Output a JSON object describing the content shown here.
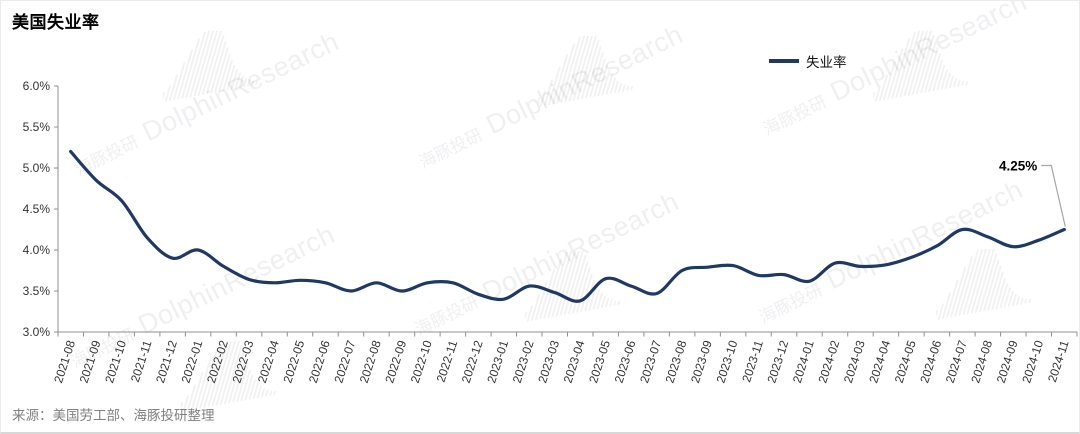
{
  "header": {
    "title": "美国失业率"
  },
  "legend": {
    "label": "失业率"
  },
  "source": {
    "text": "来源：美国劳工部、海豚投研整理"
  },
  "watermark": {
    "cn": "海豚投研",
    "en": "DolphinResearch"
  },
  "annotation": {
    "last_value": "4.25%"
  },
  "chart_data": {
    "type": "line",
    "title": "美国失业率",
    "categories": [
      "2021-08",
      "2021-09",
      "2021-10",
      "2021-11",
      "2021-12",
      "2022-01",
      "2022-02",
      "2022-03",
      "2022-04",
      "2022-05",
      "2022-06",
      "2022-07",
      "2022-08",
      "2022-09",
      "2022-10",
      "2022-11",
      "2022-12",
      "2023-01",
      "2023-02",
      "2023-03",
      "2023-04",
      "2023-05",
      "2023-06",
      "2023-07",
      "2023-08",
      "2023-09",
      "2023-10",
      "2023-11",
      "2023-12",
      "2024-01",
      "2024-02",
      "2024-03",
      "2024-04",
      "2024-05",
      "2024-06",
      "2024-07",
      "2024-08",
      "2024-09",
      "2024-10",
      "2024-11"
    ],
    "series": [
      {
        "name": "失业率",
        "values": [
          5.2,
          4.85,
          4.6,
          4.15,
          3.9,
          4.0,
          3.8,
          3.64,
          3.6,
          3.63,
          3.6,
          3.5,
          3.6,
          3.5,
          3.6,
          3.6,
          3.46,
          3.4,
          3.56,
          3.48,
          3.38,
          3.65,
          3.56,
          3.47,
          3.75,
          3.79,
          3.81,
          3.69,
          3.7,
          3.62,
          3.84,
          3.8,
          3.82,
          3.91,
          4.05,
          4.25,
          4.16,
          4.04,
          4.12,
          4.25
        ]
      }
    ],
    "xlabel": "",
    "ylabel": "",
    "ylim": [
      3.0,
      6.0
    ],
    "ytick_step": 0.5,
    "ytick_labels": [
      "3.0%",
      "3.5%",
      "4.0%",
      "4.5%",
      "5.0%",
      "5.5%",
      "6.0%"
    ],
    "grid": false,
    "smooth": true,
    "legend_position": "top-right",
    "line_color": "#1f3864",
    "axis_color": "#8f8f8f",
    "tick_label_color": "#333333",
    "last_point_label": "4.25%",
    "callout_color": "#a6a6a6"
  }
}
